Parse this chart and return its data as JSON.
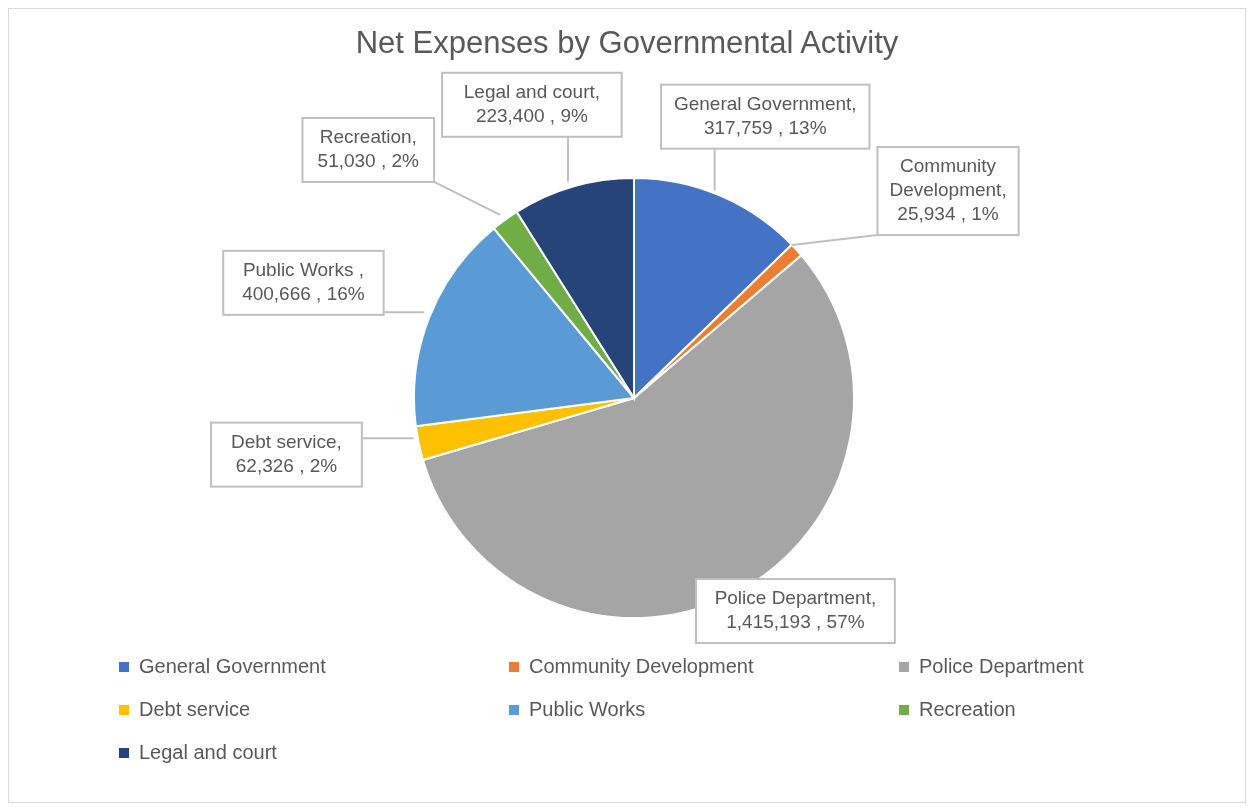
{
  "chart_data": {
    "type": "pie",
    "title": "Net Expenses by Governmental Activity",
    "categories": [
      "General Government",
      "Community Development",
      "Police Department",
      "Debt service",
      "Public Works",
      "Recreation",
      "Legal and court"
    ],
    "values": [
      317759,
      25934,
      1415193,
      62326,
      400666,
      51030,
      223400
    ],
    "value_labels": [
      "General Government, 317,759 , 13%",
      "Community Development, 25,934 , 1%",
      "Police Department, 1,415,193 , 57%",
      "Debt service, 62,326 , 2%",
      "Public Works , 400,666 , 16%",
      "Recreation, 51,030 , 2%",
      "Legal and court, 223,400 , 9%"
    ],
    "colors": [
      "#4472c4",
      "#ed7d31",
      "#a5a5a5",
      "#ffc000",
      "#5b9bd5",
      "#70ad47",
      "#264478"
    ],
    "legend": "bottom"
  }
}
